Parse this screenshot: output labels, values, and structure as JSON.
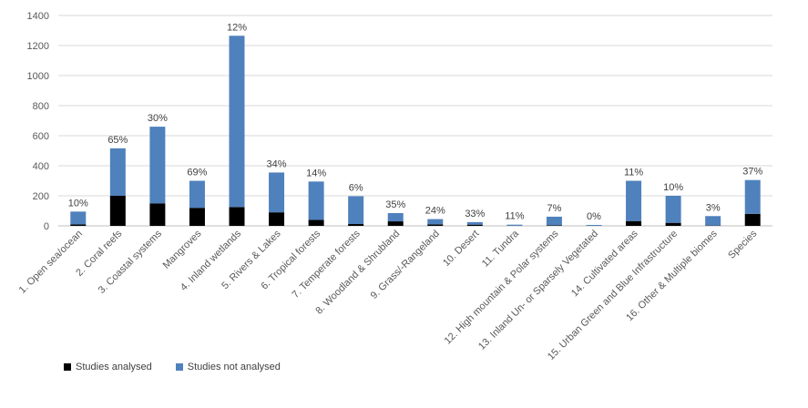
{
  "chart_data": {
    "type": "bar",
    "stacked": true,
    "categories": [
      "1. Open sea/ocean",
      "2. Coral reefs",
      "3. Coastal systems",
      "Mangroves",
      "4. Inland wetlands",
      "5. Rivers & Lakes",
      "6. Tropical forests",
      "7. Temperate forests",
      "8. Woodland & Shrubland",
      "9. Grass/-Rangeland",
      "10. Desert",
      "11. Tundra",
      "12. High mountain & Polar systems",
      "13. Inland Un- or Sparsely Vegetated",
      "14. Cultivated areas",
      "15. Urban Green and Blue Infrastructure",
      "16. Other & Multiple biomes",
      "Species"
    ],
    "series": [
      {
        "name": "Studies analysed",
        "color": "#000000",
        "values": [
          9,
          200,
          150,
          120,
          125,
          90,
          40,
          12,
          30,
          10,
          8,
          1,
          4,
          0,
          32,
          20,
          2,
          80
        ]
      },
      {
        "name": "Studies not analysed",
        "color": "#4f81bd",
        "values": [
          86,
          316,
          510,
          180,
          1140,
          265,
          255,
          185,
          55,
          35,
          17,
          7,
          57,
          6,
          268,
          180,
          63,
          225
        ]
      }
    ],
    "data_labels": [
      "10%",
      "65%",
      "30%",
      "69%",
      "12%",
      "34%",
      "14%",
      "6%",
      "35%",
      "24%",
      "33%",
      "11%",
      "7%",
      "0%",
      "11%",
      "10%",
      "3%",
      "37%"
    ],
    "ylim": [
      0,
      1400
    ],
    "yticks": [
      "0",
      "200",
      "400",
      "600",
      "800",
      "1000",
      "1200",
      "1400"
    ],
    "grid": true,
    "legend_position": "bottom-left",
    "title": "",
    "xlabel": "",
    "ylabel": ""
  }
}
